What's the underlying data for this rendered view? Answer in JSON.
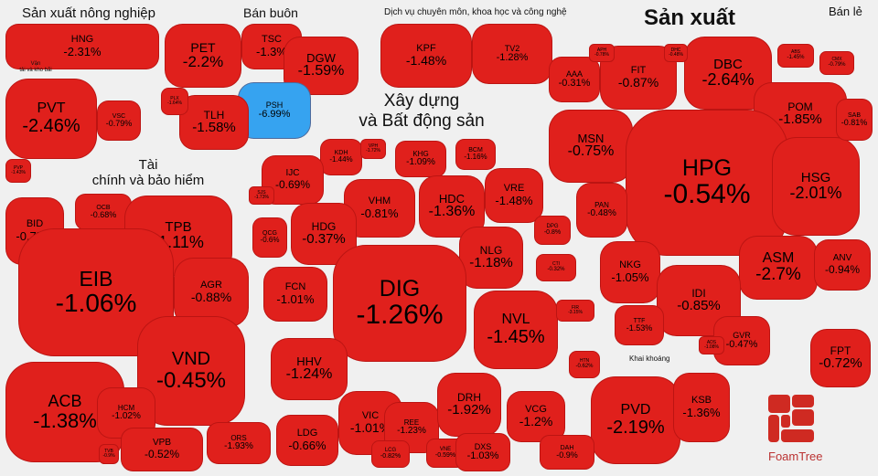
{
  "colors": {
    "down": "#e0201c",
    "down_light": "#e83a34",
    "accent": "#36a3f0",
    "background": "#f0f0f0"
  },
  "sector_labels": {
    "san_xuat_nong_nghiep": "Sản xuất nông nghiệp",
    "ban_buon": "Bán buôn",
    "dich_vu": "Dịch vụ chuyên môn, khoa học và công nghệ",
    "san_xuat": "Sản xuất",
    "ban_le": "Bán lẻ",
    "van_tai_l1": "Vận",
    "van_tai_l2": "tải và kho bãi",
    "xay_dung_l1": "Xây dựng",
    "xay_dung_l2": "và Bất động sản",
    "tai_chinh_l1": "Tài",
    "tai_chinh_l2": "chính và bảo hiểm",
    "khai_khoang": "Khai khoáng"
  },
  "logo_text": "FoamTree",
  "chart_data": {
    "type": "heatmap",
    "title": "Stock market heatmap (Voronoi treemap) by sector, % change",
    "groups": [
      {
        "sector": "Sản xuất nông nghiệp",
        "stocks": [
          {
            "ticker": "HNG",
            "change": "-2.31%"
          }
        ]
      },
      {
        "sector": "Vận tải và kho bãi",
        "stocks": [
          {
            "ticker": "PVT",
            "change": "-2.46%"
          },
          {
            "ticker": "VSC",
            "change": "-0.79%"
          },
          {
            "ticker": "PVP",
            "change": "-1.43%"
          }
        ]
      },
      {
        "sector": "Bán buôn",
        "stocks": [
          {
            "ticker": "PET",
            "change": "-2.2%"
          },
          {
            "ticker": "TSC",
            "change": "-1.3%"
          },
          {
            "ticker": "DGW",
            "change": "-1.59%"
          },
          {
            "ticker": "PSH",
            "change": "-6.99%"
          },
          {
            "ticker": "TLH",
            "change": "-1.58%"
          },
          {
            "ticker": "PLX",
            "change": "-1.64%"
          }
        ]
      },
      {
        "sector": "Dịch vụ chuyên môn, khoa học và công nghệ",
        "stocks": [
          {
            "ticker": "KPF",
            "change": "-1.48%"
          },
          {
            "ticker": "TV2",
            "change": "-1.28%"
          }
        ]
      },
      {
        "sector": "Sản xuất",
        "stocks": [
          {
            "ticker": "AAA",
            "change": "-0.31%"
          },
          {
            "ticker": "FIT",
            "change": "-0.87%"
          },
          {
            "ticker": "DBC",
            "change": "-2.64%"
          },
          {
            "ticker": "POM",
            "change": "-1.85%"
          },
          {
            "ticker": "MSN",
            "change": "-0.75%"
          },
          {
            "ticker": "HPG",
            "change": "-0.54%"
          },
          {
            "ticker": "HSG",
            "change": "-2.01%"
          },
          {
            "ticker": "PAN",
            "change": "-0.48%"
          },
          {
            "ticker": "NKG",
            "change": "-1.05%"
          },
          {
            "ticker": "ASM",
            "change": "-2.7%"
          },
          {
            "ticker": "ANV",
            "change": "-0.94%"
          },
          {
            "ticker": "IDI",
            "change": "-0.85%"
          },
          {
            "ticker": "TTF",
            "change": "-1.53%"
          },
          {
            "ticker": "GVR",
            "change": "-0.47%"
          },
          {
            "ticker": "ABS",
            "change": "-1.45%"
          },
          {
            "ticker": "SAB",
            "change": "-0.81%"
          },
          {
            "ticker": "APH",
            "change": "-0.78%"
          },
          {
            "ticker": "DHC",
            "change": "-0.48%"
          },
          {
            "ticker": "CMX",
            "change": "-0.79%"
          },
          {
            "ticker": "ADS",
            "change": "-1.08%"
          }
        ]
      },
      {
        "sector": "Bán lẻ",
        "stocks": [
          {
            "ticker": "FPT",
            "change": "-0.72%"
          }
        ]
      },
      {
        "sector": "Xây dựng và Bất động sản",
        "stocks": [
          {
            "ticker": "KDH",
            "change": "-1.44%"
          },
          {
            "ticker": "VPH",
            "change": "-1.72%"
          },
          {
            "ticker": "KHG",
            "change": "-1.09%"
          },
          {
            "ticker": "BCM",
            "change": "-1.16%"
          },
          {
            "ticker": "IJC",
            "change": "-0.69%"
          },
          {
            "ticker": "VHM",
            "change": "-0.81%"
          },
          {
            "ticker": "HDC",
            "change": "-1.36%"
          },
          {
            "ticker": "VRE",
            "change": "-1.48%"
          },
          {
            "ticker": "HDG",
            "change": "-0.37%"
          },
          {
            "ticker": "QCG",
            "change": "-0.6%"
          },
          {
            "ticker": "DPG",
            "change": "-0.8%"
          },
          {
            "ticker": "NLG",
            "change": "-1.18%"
          },
          {
            "ticker": "CTI",
            "change": "-0.32%"
          },
          {
            "ticker": "FCN",
            "change": "-1.01%"
          },
          {
            "ticker": "DIG",
            "change": "-1.26%"
          },
          {
            "ticker": "NVL",
            "change": "-1.45%"
          },
          {
            "ticker": "FIR",
            "change": "-3.15%"
          },
          {
            "ticker": "HHV",
            "change": "-1.24%"
          },
          {
            "ticker": "VIC",
            "change": "-1.01%"
          },
          {
            "ticker": "REE",
            "change": "-1.23%"
          },
          {
            "ticker": "DRH",
            "change": "-1.92%"
          },
          {
            "ticker": "VCG",
            "change": "-1.2%"
          },
          {
            "ticker": "LDG",
            "change": "-0.66%"
          },
          {
            "ticker": "LCG",
            "change": "-0.82%"
          },
          {
            "ticker": "VNE",
            "change": "-0.59%"
          },
          {
            "ticker": "DXS",
            "change": "-1.03%"
          },
          {
            "ticker": "HTN",
            "change": "-0.62%"
          },
          {
            "ticker": "SJS",
            "change": "-1.73%"
          }
        ]
      },
      {
        "sector": "Tài chính và bảo hiểm",
        "stocks": [
          {
            "ticker": "BID",
            "change": "-0.75%"
          },
          {
            "ticker": "OCB",
            "change": "-0.68%"
          },
          {
            "ticker": "TPB",
            "change": "-1.11%"
          },
          {
            "ticker": "EIB",
            "change": "-1.06%"
          },
          {
            "ticker": "AGR",
            "change": "-0.88%"
          },
          {
            "ticker": "VND",
            "change": "-0.45%"
          },
          {
            "ticker": "ACB",
            "change": "-1.38%"
          },
          {
            "ticker": "HCM",
            "change": "-1.02%"
          },
          {
            "ticker": "VPB",
            "change": "-0.52%"
          },
          {
            "ticker": "ORS",
            "change": "-1.93%"
          },
          {
            "ticker": "TVB",
            "change": "-0.9%"
          }
        ]
      },
      {
        "sector": "Khai khoáng",
        "stocks": [
          {
            "ticker": "PVD",
            "change": "-2.19%"
          },
          {
            "ticker": "KSB",
            "change": "-1.36%"
          },
          {
            "ticker": "DAH",
            "change": "-0.9%"
          }
        ]
      }
    ]
  }
}
